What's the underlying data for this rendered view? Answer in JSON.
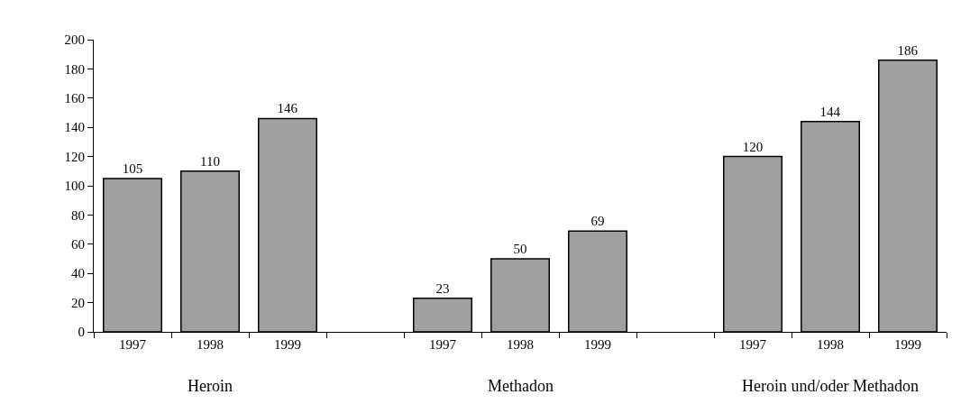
{
  "chart_data": {
    "type": "bar",
    "categories": [
      "1997",
      "1998",
      "1999",
      null,
      "1997",
      "1998",
      "1999",
      null,
      "1997",
      "1998",
      "1999"
    ],
    "values": [
      105,
      110,
      146,
      null,
      23,
      50,
      69,
      null,
      120,
      144,
      186
    ],
    "color": "#a0a0a0",
    "ylim": [
      0,
      200
    ],
    "yticks": [
      0,
      20,
      40,
      60,
      80,
      100,
      120,
      140,
      160,
      180,
      200
    ],
    "data_labels": true,
    "annotations": [
      "Heroin",
      "Methadon",
      "Heroin und/oder Methadon"
    ]
  }
}
